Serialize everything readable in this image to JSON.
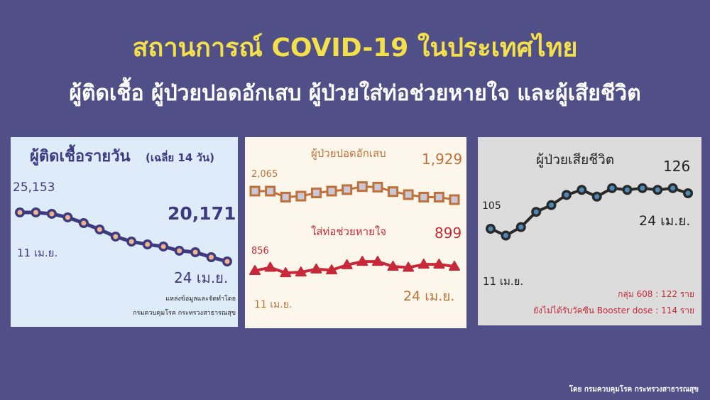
{
  "header": {
    "title": "สถานการณ์ COVID-19 ในประเทศไทย",
    "subtitle": "ผู้ติดเชื้อ ผู้ป่วยปอดอักเสบ ผู้ป่วยใส่ท่อช่วยหายใจ และผู้เสียชีวิต"
  },
  "footer": "โดย กรมควบคุมโรค กระทรวงสาธารณสุข",
  "colors": {
    "background": "#514f88",
    "title": "#f4e04a",
    "cases_line": "#3d3a82",
    "pneumonia_line": "#c0703a",
    "ventilator_line": "#c62a3a",
    "deaths_line": "#2a2a2a"
  },
  "chart_data": [
    {
      "type": "line",
      "title": "ผู้ติดเชื้อรายวัน",
      "title_note": "(เฉลี่ย 14 วัน)",
      "start_label": "11 เม.ย.",
      "end_label": "24 เม.ย.",
      "series": [
        {
          "values": [
            25153,
            25153,
            25010,
            24650,
            24070,
            23420,
            22700,
            22190,
            21900,
            21690,
            21260,
            21110,
            20600,
            20171
          ],
          "first_label": "25,153",
          "last_label": "20,171",
          "marker": "circle"
        }
      ],
      "source_lines": [
        "แหล่งข้อมูลและจัดทำโดย",
        "กรมควบคุมโรค กระทรวงสาธารณสุข"
      ]
    },
    {
      "type": "line",
      "start_label": "11 เม.ย.",
      "end_label": "24 เม.ย.",
      "series": [
        {
          "name": "ผู้ป่วยปอดอักเสบ",
          "values": [
            2065,
            2065,
            1969,
            1985,
            2037,
            2065,
            2089,
            2137,
            2129,
            2057,
            2009,
            1969,
            1969,
            1929
          ],
          "first_label": "2,065",
          "last_label": "1,929",
          "marker": "square"
        },
        {
          "name": "ใส่ท่อช่วยหายใจ",
          "values": [
            856,
            888,
            834,
            841,
            871,
            862,
            914,
            948,
            948,
            899,
            888,
            920,
            920,
            899
          ],
          "first_label": "856",
          "last_label": "899",
          "marker": "triangle"
        }
      ]
    },
    {
      "type": "line",
      "title": "ผู้ป่วยเสียชีวิต",
      "start_label": "11 เม.ย.",
      "end_label": "24 เม.ย.",
      "series": [
        {
          "values": [
            105,
            101,
            106,
            115,
            119,
            125,
            128,
            124,
            129,
            128,
            129,
            128,
            129,
            126
          ],
          "first_label": "105",
          "last_label": "126",
          "marker": "circle"
        }
      ],
      "notes": [
        "กลุ่ม 608 : 122 ราย",
        "ยังไม่ได้รับวัคซีน Booster dose : 114 ราย"
      ]
    }
  ]
}
